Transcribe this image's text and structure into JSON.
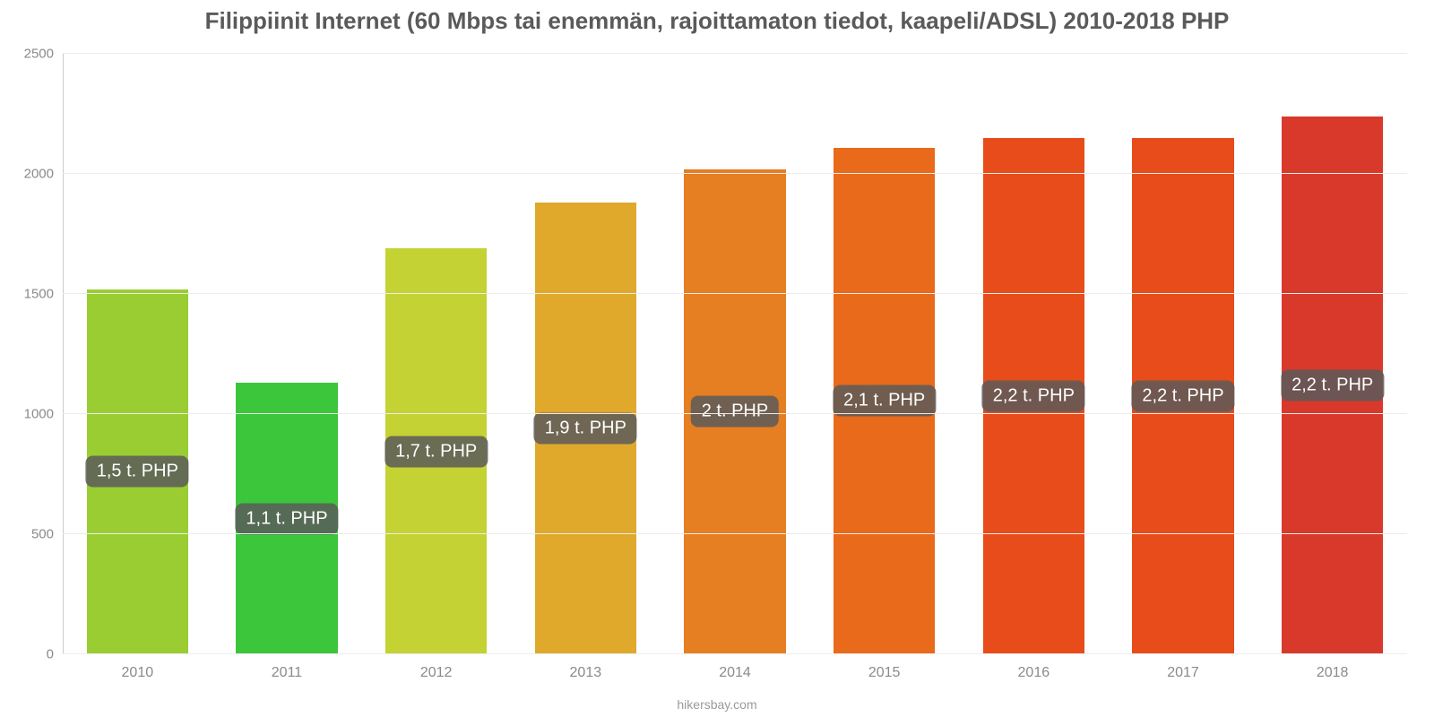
{
  "chart": {
    "type": "bar",
    "title": "Filippiinit Internet (60 Mbps tai enemmän, rajoittamaton tiedot, kaapeli/ADSL) 2010-2018 PHP",
    "title_fontsize": 26,
    "title_color": "#5a5a5a",
    "background_color": "#ffffff",
    "grid_color": "#ececec",
    "axis_color": "#cccccc",
    "ylim": [
      0,
      2500
    ],
    "ytick_step": 500,
    "ytick_labels": [
      "0",
      "500",
      "1000",
      "1500",
      "2000",
      "2500"
    ],
    "ytick_color": "#8a8a8a",
    "ytick_fontsize": 15,
    "xtick_color": "#8a8a8a",
    "xtick_fontsize": 16,
    "bar_width_ratio": 0.68,
    "value_badge": {
      "bg": "rgba(90,90,90,0.85)",
      "color": "#ffffff",
      "fontsize": 20,
      "radius": 8,
      "y_position_ratio": 0.5
    },
    "categories": [
      "2010",
      "2011",
      "2012",
      "2013",
      "2014",
      "2015",
      "2016",
      "2017",
      "2018"
    ],
    "values": [
      1520,
      1130,
      1690,
      1880,
      2020,
      2110,
      2150,
      2150,
      2240
    ],
    "value_labels": [
      "1,5 t. PHP",
      "1,1 t. PHP",
      "1,7 t. PHP",
      "1,9 t. PHP",
      "2 t. PHP",
      "2,1 t. PHP",
      "2,2 t. PHP",
      "2,2 t. PHP",
      "2,2 t. PHP"
    ],
    "bar_colors": [
      "#9acd32",
      "#3cc63c",
      "#c4d233",
      "#e0a92c",
      "#e67e22",
      "#e86a1a",
      "#e74c1a",
      "#e74c1a",
      "#d8392b"
    ],
    "credit": "hikersbay.com",
    "credit_color": "#9a9a9a",
    "credit_fontsize": 14
  }
}
